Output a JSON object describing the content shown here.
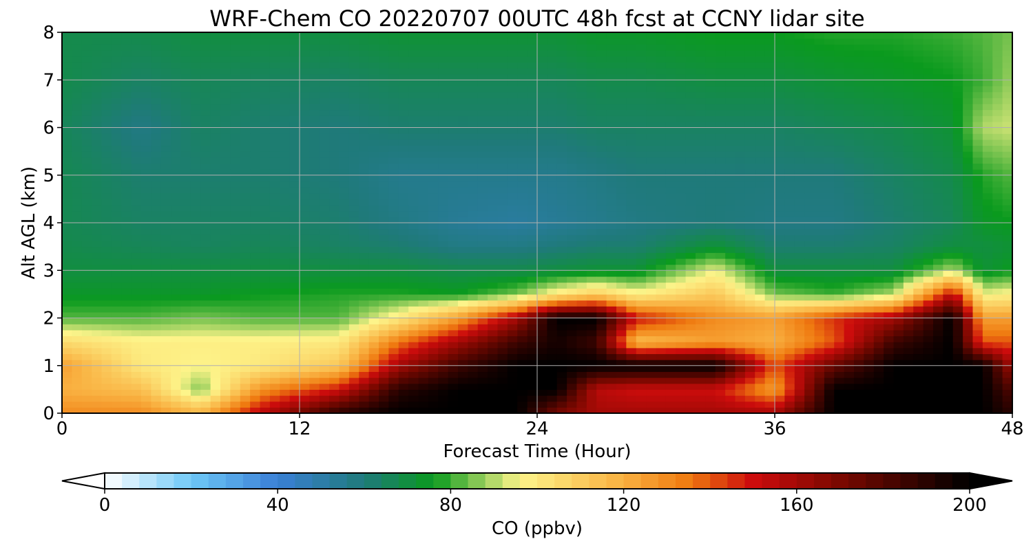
{
  "chart_data": {
    "type": "heatmap",
    "title": "WRF-Chem CO  20220707 00UTC 48h fcst at CCNY lidar site",
    "xlabel": "Forecast Time (Hour)",
    "ylabel": "Alt AGL (km)",
    "x_ticks": [
      "0",
      "12",
      "24",
      "36",
      "48"
    ],
    "y_ticks": [
      "0",
      "1",
      "2",
      "3",
      "4",
      "5",
      "6",
      "7",
      "8"
    ],
    "xlim": [
      0,
      48
    ],
    "ylim": [
      0,
      8
    ],
    "grid": true,
    "colorbar": {
      "label": "CO  (ppbv)",
      "ticks": [
        "0",
        "40",
        "80",
        "120",
        "160",
        "200"
      ],
      "range": [
        0,
        200
      ],
      "extend": "both",
      "stops": [
        {
          "value": 0,
          "color": "#ffffff"
        },
        {
          "value": 20,
          "color": "#6ec8f7"
        },
        {
          "value": 40,
          "color": "#3a7fd6"
        },
        {
          "value": 60,
          "color": "#1f7a7a"
        },
        {
          "value": 76,
          "color": "#0a9a1e"
        },
        {
          "value": 96,
          "color": "#fdf48a"
        },
        {
          "value": 120,
          "color": "#f9b040"
        },
        {
          "value": 135,
          "color": "#ef7a10"
        },
        {
          "value": 150,
          "color": "#cc0c0c"
        },
        {
          "value": 170,
          "color": "#7a0800"
        },
        {
          "value": 200,
          "color": "#000000"
        }
      ]
    },
    "altitudes_km": [
      0,
      0.5,
      1,
      1.5,
      2,
      2.5,
      3,
      3.5,
      4,
      5,
      6,
      7,
      8
    ],
    "series": [
      {
        "hour": 0,
        "co": [
          130,
          120,
          125,
          105,
          82,
          74,
          70,
          68,
          67,
          67,
          66,
          68,
          68
        ]
      },
      {
        "hour": 4,
        "co": [
          130,
          115,
          100,
          98,
          82,
          74,
          70,
          66,
          64,
          62,
          58,
          64,
          68
        ]
      },
      {
        "hour": 7,
        "co": [
          118,
          85,
          96,
          98,
          85,
          74,
          70,
          65,
          64,
          62,
          64,
          66,
          70
        ]
      },
      {
        "hour": 10,
        "co": [
          155,
          128,
          100,
          98,
          82,
          76,
          70,
          66,
          64,
          62,
          62,
          65,
          70
        ]
      },
      {
        "hour": 14,
        "co": [
          190,
          150,
          112,
          100,
          82,
          78,
          70,
          64,
          62,
          60,
          60,
          64,
          70
        ]
      },
      {
        "hour": 17,
        "co": [
          200,
          190,
          160,
          135,
          100,
          78,
          70,
          62,
          58,
          56,
          62,
          66,
          72
        ]
      },
      {
        "hour": 20,
        "co": [
          200,
          200,
          185,
          160,
          125,
          76,
          68,
          58,
          54,
          56,
          62,
          66,
          72
        ]
      },
      {
        "hour": 23,
        "co": [
          200,
          200,
          200,
          185,
          160,
          85,
          68,
          58,
          52,
          56,
          62,
          66,
          72
        ]
      },
      {
        "hour": 25,
        "co": [
          170,
          200,
          200,
          195,
          200,
          100,
          70,
          60,
          54,
          56,
          62,
          66,
          72
        ]
      },
      {
        "hour": 27,
        "co": [
          160,
          155,
          200,
          185,
          200,
          110,
          72,
          62,
          56,
          58,
          64,
          68,
          74
        ]
      },
      {
        "hour": 29,
        "co": [
          160,
          150,
          200,
          115,
          150,
          98,
          72,
          62,
          58,
          60,
          64,
          68,
          74
        ]
      },
      {
        "hour": 33,
        "co": [
          160,
          150,
          200,
          125,
          130,
          112,
          95,
          72,
          60,
          60,
          64,
          70,
          76
        ]
      },
      {
        "hour": 36,
        "co": [
          160,
          125,
          140,
          120,
          125,
          85,
          70,
          62,
          58,
          60,
          64,
          70,
          76
        ]
      },
      {
        "hour": 39,
        "co": [
          200,
          200,
          175,
          140,
          145,
          80,
          70,
          62,
          58,
          60,
          66,
          72,
          78
        ]
      },
      {
        "hour": 42,
        "co": [
          200,
          200,
          200,
          185,
          160,
          90,
          70,
          64,
          62,
          64,
          68,
          74,
          78
        ]
      },
      {
        "hour": 45,
        "co": [
          200,
          200,
          200,
          200,
          200,
          155,
          90,
          70,
          66,
          68,
          72,
          76,
          80
        ]
      },
      {
        "hour": 46.5,
        "co": [
          200,
          200,
          200,
          140,
          125,
          95,
          72,
          70,
          74,
          78,
          90,
          80,
          82
        ]
      },
      {
        "hour": 48,
        "co": [
          190,
          180,
          160,
          140,
          125,
          98,
          76,
          72,
          76,
          82,
          92,
          88,
          85
        ]
      }
    ]
  }
}
